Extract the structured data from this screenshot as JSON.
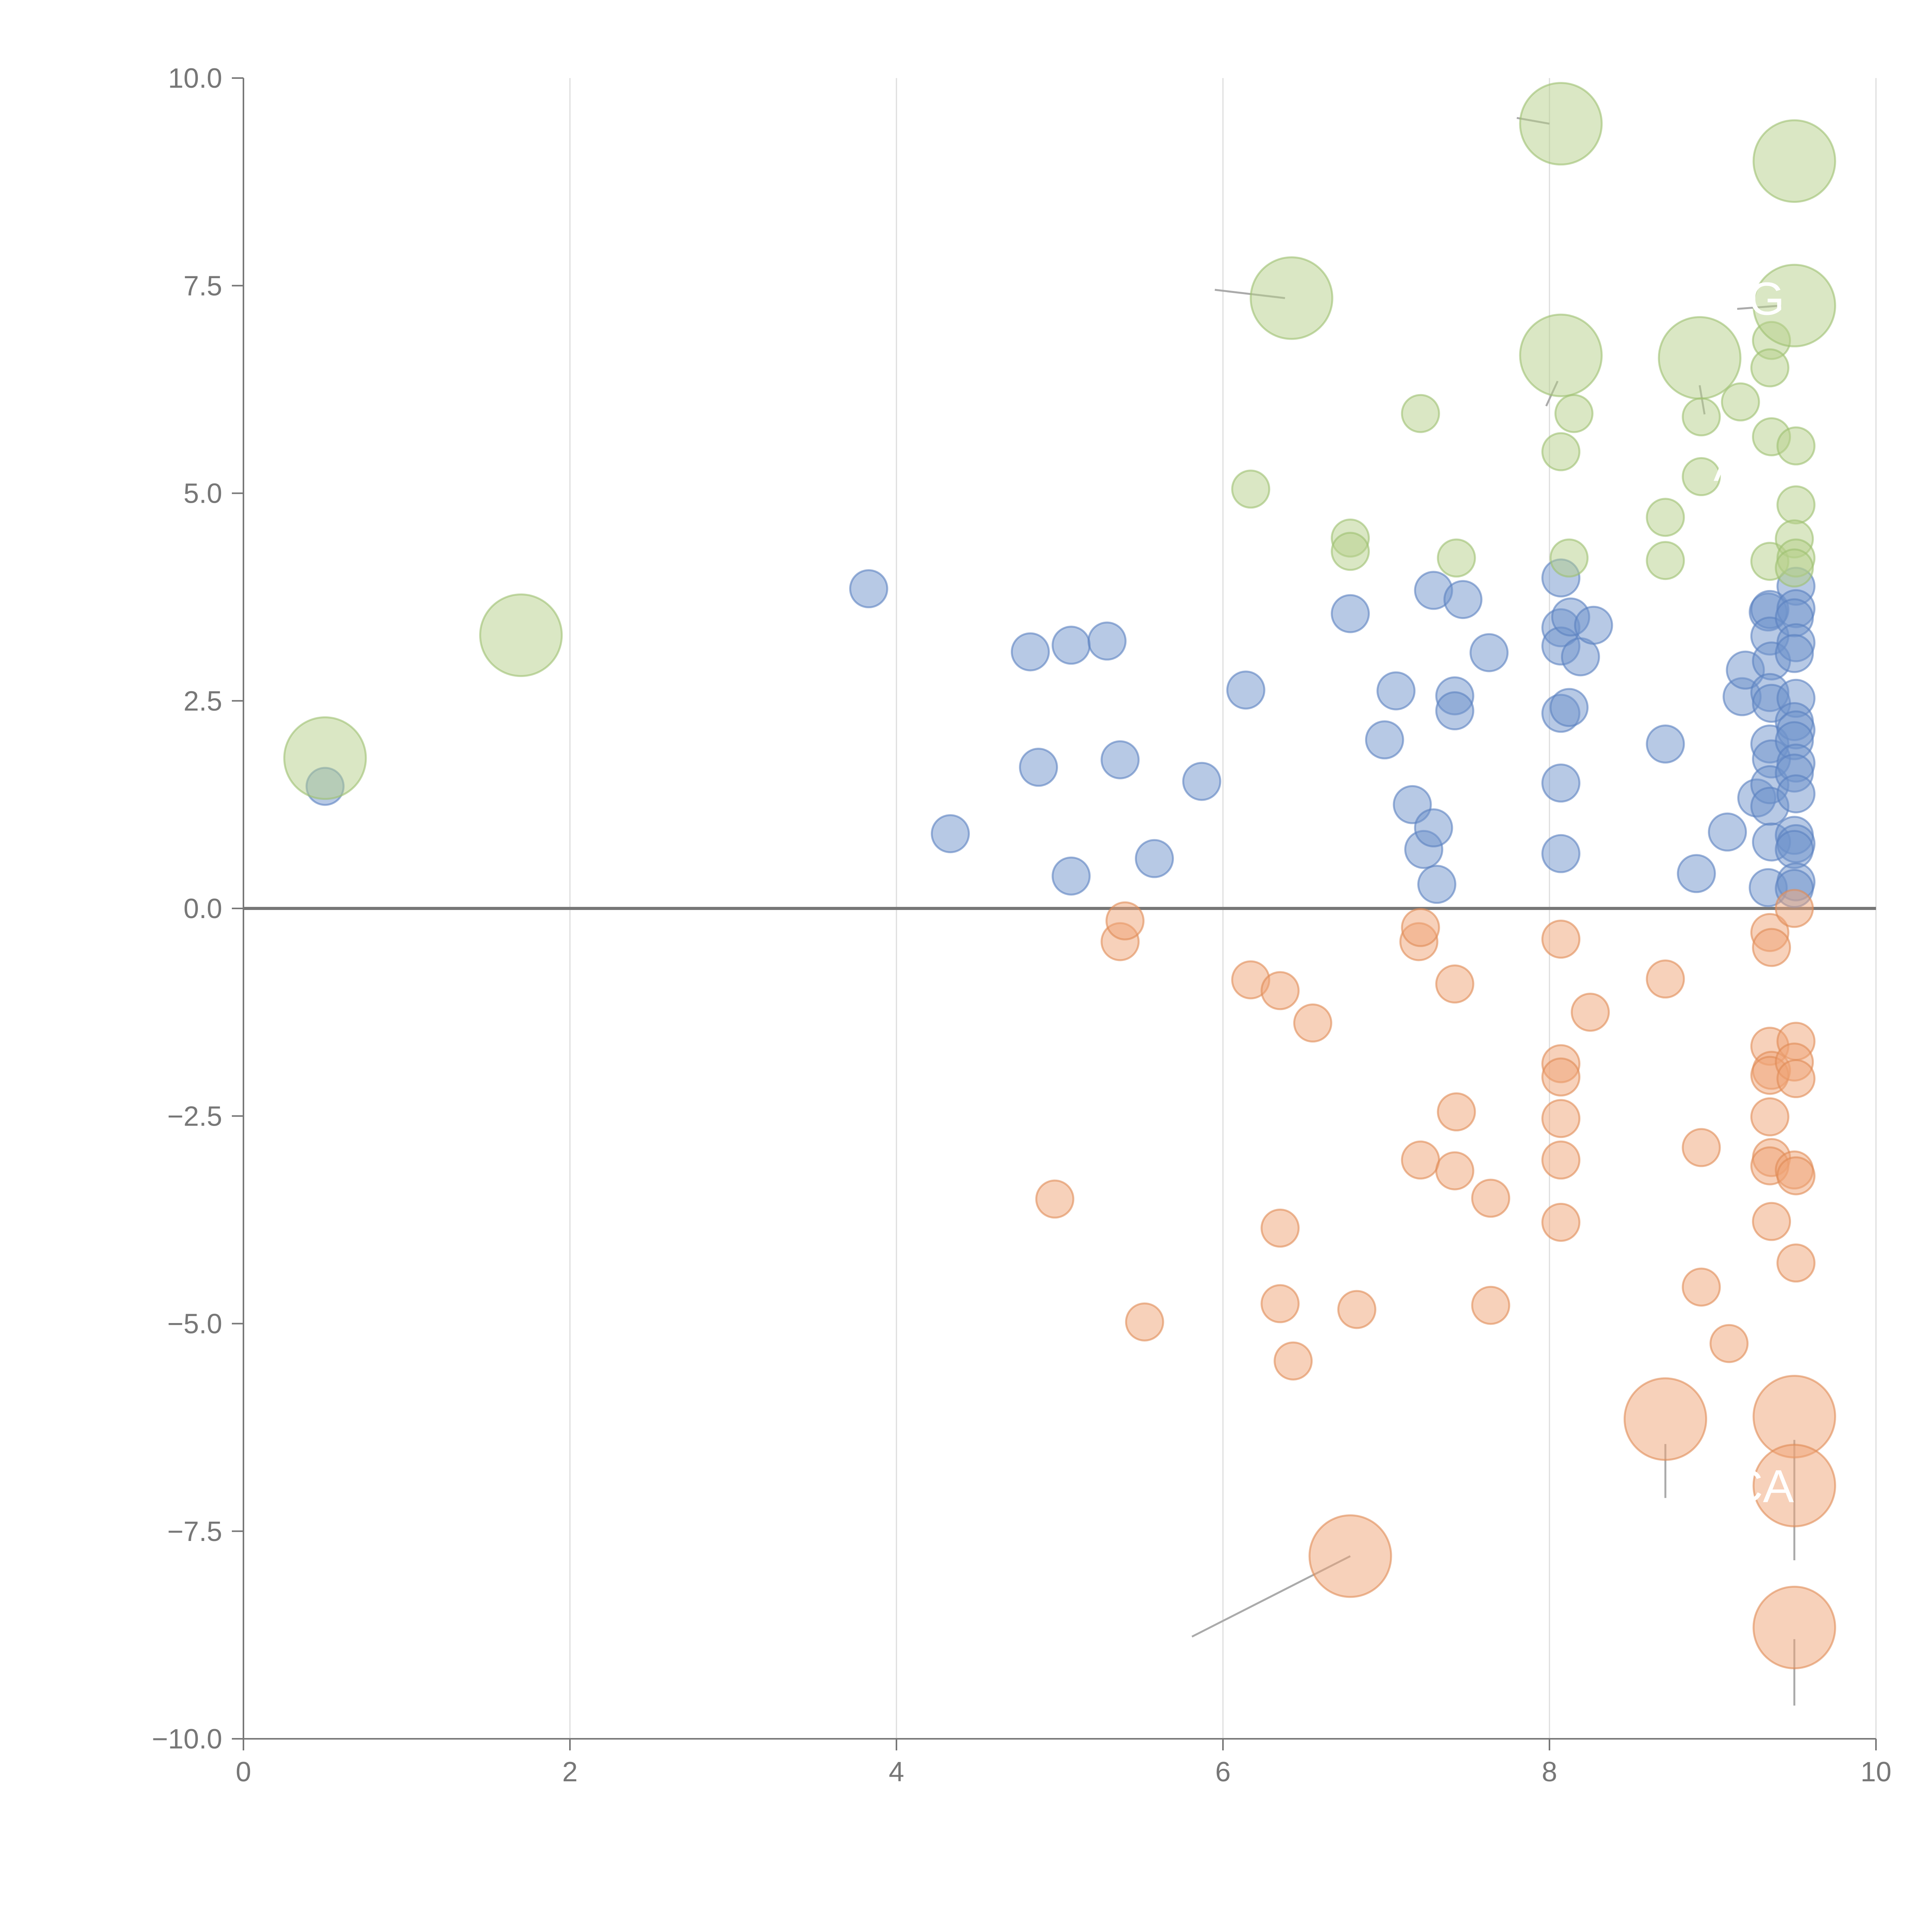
{
  "chart_data": {
    "type": "scatter",
    "title": "",
    "xlabel": "",
    "ylabel": "",
    "xlim": [
      0,
      10
    ],
    "ylim": [
      -10,
      10
    ],
    "x_ticks": [
      0,
      2,
      4,
      6,
      8,
      10
    ],
    "x_tick_labels": [
      "0",
      "2",
      "4",
      "6",
      "8",
      "10"
    ],
    "y_ticks": [
      -10,
      -7.5,
      -5,
      -2.5,
      0,
      2.5,
      5,
      7.5,
      10
    ],
    "y_tick_labels": [
      "−10.0",
      "−7.5",
      "−5.0",
      "−2.5",
      "0.0",
      "2.5",
      "5.0",
      "7.5",
      "10.0"
    ],
    "grid": "vertical",
    "reference_line_y": 0,
    "colors": {
      "blue_fill": "#7094CC",
      "blue_stroke": "#5A80C0",
      "orange_fill": "#EFA475",
      "orange_stroke": "#E08A55",
      "green_fill": "#B5D08A",
      "green_stroke": "#9CC070",
      "axis": "#777777",
      "grid": "#DDDDDD",
      "zero_line": "#777777",
      "leader": "#AAAAAA",
      "annotation_text": "#FFFFFF"
    },
    "series": [
      {
        "name": "blue",
        "color_key": "blue",
        "points": [
          [
            0.5,
            1.47,
            1
          ],
          [
            3.83,
            3.85,
            1
          ],
          [
            4.33,
            0.9,
            1
          ],
          [
            4.82,
            3.09,
            1
          ],
          [
            4.87,
            1.7,
            1
          ],
          [
            5.07,
            3.17,
            1
          ],
          [
            5.07,
            0.39,
            1
          ],
          [
            5.29,
            3.22,
            1
          ],
          [
            5.37,
            1.79,
            1
          ],
          [
            5.58,
            0.6,
            1
          ],
          [
            5.87,
            1.53,
            1
          ],
          [
            6.14,
            2.63,
            1
          ],
          [
            6.78,
            3.55,
            1
          ],
          [
            6.99,
            2.03,
            1
          ],
          [
            7.06,
            2.62,
            1
          ],
          [
            7.16,
            1.25,
            1
          ],
          [
            7.23,
            0.71,
            1
          ],
          [
            7.29,
            0.97,
            1
          ],
          [
            7.29,
            3.83,
            1
          ],
          [
            7.31,
            0.29,
            1
          ],
          [
            7.42,
            2.56,
            1
          ],
          [
            7.42,
            2.38,
            1
          ],
          [
            7.47,
            3.72,
            1
          ],
          [
            7.63,
            3.08,
            1
          ],
          [
            8.07,
            3.98,
            1
          ],
          [
            8.07,
            3.38,
            1
          ],
          [
            8.07,
            3.16,
            1
          ],
          [
            8.07,
            2.35,
            1
          ],
          [
            8.07,
            1.51,
            1
          ],
          [
            8.07,
            0.66,
            1
          ],
          [
            8.13,
            3.51,
            1
          ],
          [
            8.12,
            2.42,
            1
          ],
          [
            8.19,
            3.03,
            1
          ],
          [
            8.27,
            3.41,
            1
          ],
          [
            8.71,
            1.98,
            1
          ],
          [
            8.9,
            0.42,
            1
          ],
          [
            9.09,
            0.92,
            1
          ],
          [
            9.18,
            2.55,
            1
          ],
          [
            9.2,
            2.87,
            1
          ],
          [
            9.27,
            1.33,
            1
          ],
          [
            9.34,
            3.57,
            1
          ],
          [
            9.35,
            3.6,
            1
          ],
          [
            9.35,
            3.28,
            1
          ],
          [
            9.36,
            2.98,
            1
          ],
          [
            9.35,
            2.6,
            1
          ],
          [
            9.36,
            2.47,
            1
          ],
          [
            9.35,
            1.98,
            1
          ],
          [
            9.36,
            1.8,
            1
          ],
          [
            9.35,
            1.49,
            1
          ],
          [
            9.35,
            1.23,
            1
          ],
          [
            9.36,
            0.8,
            1
          ],
          [
            9.34,
            0.25,
            1
          ],
          [
            9.51,
            3.88,
            1
          ],
          [
            9.51,
            3.61,
            1
          ],
          [
            9.5,
            3.5,
            1
          ],
          [
            9.51,
            3.2,
            1
          ],
          [
            9.5,
            3.07,
            1
          ],
          [
            9.51,
            2.53,
            1
          ],
          [
            9.5,
            2.25,
            1
          ],
          [
            9.51,
            2.15,
            1
          ],
          [
            9.5,
            2.02,
            1
          ],
          [
            9.51,
            1.75,
            1
          ],
          [
            9.5,
            1.63,
            1
          ],
          [
            9.51,
            1.38,
            1
          ],
          [
            9.5,
            0.88,
            1
          ],
          [
            9.51,
            0.78,
            1
          ],
          [
            9.5,
            0.71,
            1
          ],
          [
            9.51,
            0.32,
            1
          ],
          [
            9.5,
            0.24,
            1
          ]
        ]
      },
      {
        "name": "orange",
        "color_key": "orange",
        "points": [
          [
            4.97,
            -3.5,
            1
          ],
          [
            5.37,
            -0.4,
            1
          ],
          [
            5.4,
            -0.15,
            1
          ],
          [
            5.52,
            -4.98,
            1
          ],
          [
            6.17,
            -0.86,
            1
          ],
          [
            6.35,
            -0.99,
            1
          ],
          [
            6.35,
            -3.85,
            1
          ],
          [
            6.35,
            -4.76,
            1
          ],
          [
            6.43,
            -5.45,
            1
          ],
          [
            6.55,
            -1.38,
            1
          ],
          [
            6.82,
            -4.83,
            1
          ],
          [
            6.78,
            -7.8,
            2.2
          ],
          [
            7.2,
            -0.4,
            1
          ],
          [
            7.21,
            -0.23,
            1
          ],
          [
            7.21,
            -3.03,
            1
          ],
          [
            7.42,
            -0.91,
            1
          ],
          [
            7.43,
            -2.45,
            1
          ],
          [
            7.42,
            -3.16,
            1
          ],
          [
            7.64,
            -3.49,
            1
          ],
          [
            7.64,
            -4.78,
            1
          ],
          [
            8.07,
            -0.37,
            1
          ],
          [
            8.07,
            -1.87,
            1
          ],
          [
            8.07,
            -2.03,
            1
          ],
          [
            8.07,
            -2.53,
            1
          ],
          [
            8.07,
            -3.03,
            1
          ],
          [
            8.07,
            -3.78,
            1
          ],
          [
            8.25,
            -1.25,
            1
          ],
          [
            8.71,
            -0.85,
            1
          ],
          [
            8.71,
            -6.15,
            2.2
          ],
          [
            8.93,
            -2.88,
            1
          ],
          [
            8.93,
            -4.56,
            1
          ],
          [
            9.1,
            -5.24,
            1
          ],
          [
            9.35,
            -0.29,
            1
          ],
          [
            9.36,
            -0.47,
            1
          ],
          [
            9.35,
            -1.66,
            1
          ],
          [
            9.36,
            -1.95,
            1
          ],
          [
            9.35,
            -2.01,
            1
          ],
          [
            9.35,
            -2.51,
            1
          ],
          [
            9.36,
            -3.0,
            1
          ],
          [
            9.35,
            -3.1,
            1
          ],
          [
            9.36,
            -3.77,
            1
          ],
          [
            9.5,
            0.0,
            1
          ],
          [
            9.51,
            -1.6,
            1
          ],
          [
            9.5,
            -1.85,
            1
          ],
          [
            9.51,
            -2.05,
            1
          ],
          [
            9.5,
            -3.15,
            1
          ],
          [
            9.51,
            -3.22,
            1
          ],
          [
            9.51,
            -4.27,
            1
          ],
          [
            9.5,
            -6.12,
            2.2
          ],
          [
            9.5,
            -6.95,
            2.2
          ],
          [
            9.5,
            -8.66,
            2.2
          ]
        ]
      },
      {
        "name": "green",
        "color_key": "green",
        "points": [
          [
            0.5,
            1.81,
            2.2
          ],
          [
            1.7,
            3.29,
            2.2
          ],
          [
            6.17,
            5.05,
            1
          ],
          [
            6.42,
            7.35,
            2.2
          ],
          [
            6.78,
            4.46,
            1
          ],
          [
            6.78,
            4.3,
            1
          ],
          [
            7.21,
            5.96,
            1
          ],
          [
            7.43,
            4.22,
            1
          ],
          [
            8.07,
            9.45,
            2.2
          ],
          [
            8.07,
            6.66,
            2.2
          ],
          [
            8.07,
            5.5,
            1
          ],
          [
            8.15,
            5.96,
            1
          ],
          [
            8.12,
            4.22,
            1
          ],
          [
            8.71,
            4.71,
            1
          ],
          [
            8.71,
            4.19,
            1
          ],
          [
            8.92,
            6.63,
            2.2
          ],
          [
            8.93,
            5.92,
            1
          ],
          [
            8.93,
            5.2,
            1
          ],
          [
            9.17,
            6.1,
            1
          ],
          [
            9.36,
            6.84,
            1
          ],
          [
            9.35,
            6.51,
            1
          ],
          [
            9.36,
            5.68,
            1
          ],
          [
            9.35,
            4.18,
            1
          ],
          [
            9.5,
            9.0,
            2.2
          ],
          [
            9.5,
            7.26,
            2.2
          ],
          [
            9.51,
            5.57,
            1
          ],
          [
            9.51,
            4.86,
            1
          ],
          [
            9.5,
            4.45,
            1
          ],
          [
            9.51,
            4.22,
            1
          ],
          [
            9.5,
            4.1,
            1
          ]
        ]
      }
    ],
    "leader_lines": [
      [
        [
          6.78,
          -7.8
        ],
        [
          5.81,
          -8.77
        ]
      ],
      [
        [
          8.71,
          -6.45
        ],
        [
          8.71,
          -7.1
        ]
      ],
      [
        [
          9.5,
          -6.4
        ],
        [
          9.5,
          -7.85
        ]
      ],
      [
        [
          9.5,
          -8.8
        ],
        [
          9.5,
          -9.6
        ]
      ],
      [
        [
          6.38,
          7.35
        ],
        [
          5.95,
          7.45
        ]
      ],
      [
        [
          8.0,
          9.45
        ],
        [
          7.8,
          9.52
        ]
      ],
      [
        [
          8.05,
          6.35
        ],
        [
          7.98,
          6.05
        ]
      ],
      [
        [
          8.92,
          6.3
        ],
        [
          8.95,
          5.95
        ]
      ],
      [
        [
          9.42,
          7.26
        ],
        [
          9.15,
          7.22
        ]
      ]
    ],
    "annotations": [
      {
        "text": "G",
        "x": 9.33,
        "y": 7.15
      },
      {
        "text": "A",
        "x": 9.1,
        "y": 5.15
      },
      {
        "text": "CA",
        "x": 9.3,
        "y": -7.15
      }
    ]
  }
}
